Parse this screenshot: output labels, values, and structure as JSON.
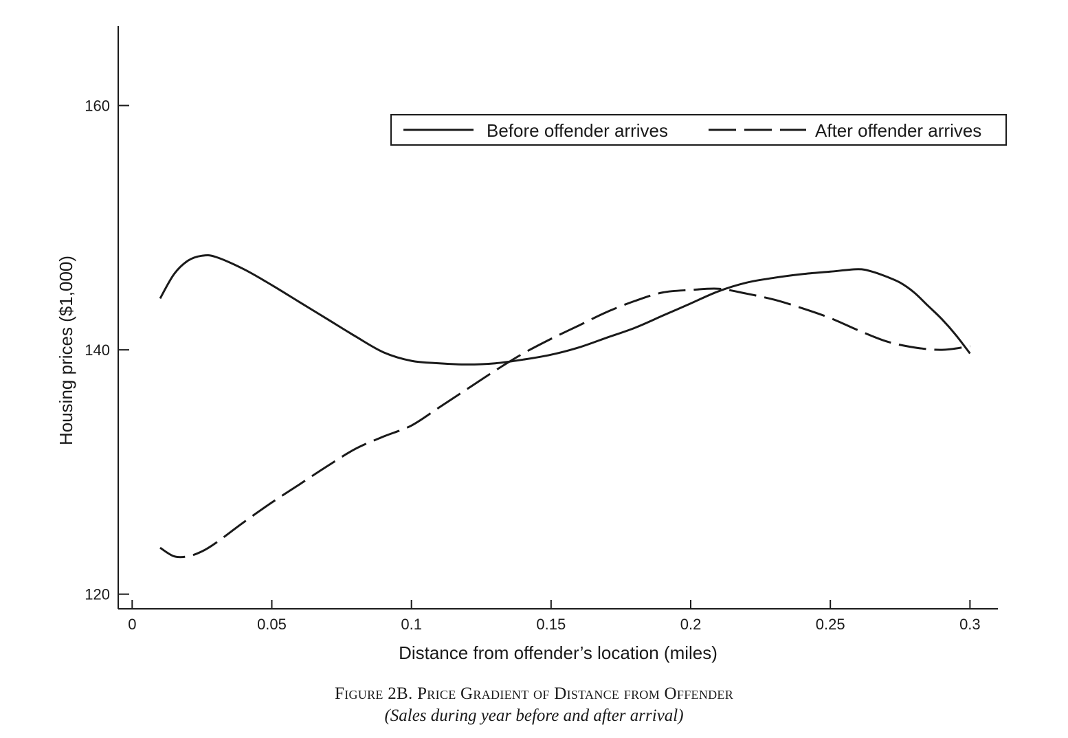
{
  "chart_data": {
    "type": "line",
    "title": "Figure 2B. Price Gradient of Distance from Offender",
    "subtitle": "(Sales during year before and after arrival)",
    "xlabel": "Distance from offender’s location (miles)",
    "ylabel": "Housing prices ($1,000)",
    "xlim": [
      -0.005,
      0.31
    ],
    "ylim": [
      118.8,
      166.5
    ],
    "xticks": [
      0,
      0.05,
      0.1,
      0.15,
      0.2,
      0.25,
      0.3
    ],
    "xtick_labels": [
      "0",
      "0.05",
      "0.1",
      "0.15",
      "0.2",
      "0.25",
      "0.3"
    ],
    "yticks": [
      120,
      140,
      160
    ],
    "ytick_labels": [
      "120",
      "140",
      "160"
    ],
    "grid": false,
    "legend_position": "top-right",
    "series": [
      {
        "name": "Before offender arrives",
        "style": "solid",
        "color": "#1a1a1a",
        "x": [
          0.01,
          0.015,
          0.02,
          0.025,
          0.03,
          0.04,
          0.05,
          0.06,
          0.07,
          0.08,
          0.09,
          0.1,
          0.11,
          0.12,
          0.13,
          0.14,
          0.15,
          0.16,
          0.17,
          0.18,
          0.19,
          0.2,
          0.21,
          0.22,
          0.23,
          0.24,
          0.25,
          0.26,
          0.265,
          0.27,
          0.275,
          0.28,
          0.285,
          0.29,
          0.295,
          0.3
        ],
        "y": [
          144.2,
          146.2,
          147.3,
          147.7,
          147.6,
          146.6,
          145.3,
          143.9,
          142.5,
          141.1,
          139.8,
          139.1,
          138.9,
          138.8,
          138.9,
          139.2,
          139.6,
          140.2,
          141.0,
          141.8,
          142.8,
          143.8,
          144.8,
          145.5,
          145.9,
          146.2,
          146.4,
          146.6,
          146.4,
          146.0,
          145.5,
          144.7,
          143.6,
          142.5,
          141.2,
          139.7
        ]
      },
      {
        "name": "After offender arrives",
        "style": "dashed",
        "color": "#1a1a1a",
        "x": [
          0.01,
          0.015,
          0.02,
          0.025,
          0.03,
          0.04,
          0.05,
          0.06,
          0.07,
          0.08,
          0.09,
          0.1,
          0.11,
          0.12,
          0.13,
          0.14,
          0.15,
          0.16,
          0.17,
          0.18,
          0.19,
          0.2,
          0.21,
          0.22,
          0.23,
          0.24,
          0.25,
          0.26,
          0.27,
          0.28,
          0.29,
          0.3
        ],
        "y": [
          123.8,
          123.1,
          123.1,
          123.5,
          124.2,
          125.9,
          127.5,
          129.0,
          130.5,
          131.9,
          132.9,
          133.8,
          135.3,
          136.8,
          138.3,
          139.7,
          140.9,
          142.0,
          143.1,
          144.0,
          144.7,
          144.9,
          145.0,
          144.6,
          144.1,
          143.4,
          142.6,
          141.6,
          140.7,
          140.2,
          140.0,
          140.3
        ]
      }
    ]
  }
}
